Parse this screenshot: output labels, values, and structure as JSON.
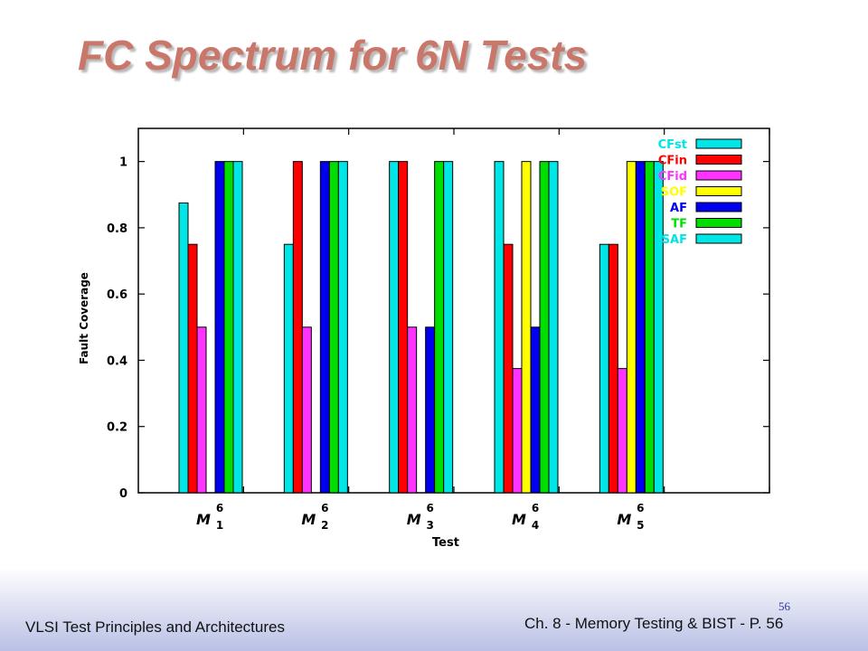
{
  "slide": {
    "title": "FC Spectrum for 6N Tests",
    "footer_left": "VLSI Test Principles and Architectures",
    "footer_right": "Ch. 8 - Memory Testing & BIST - P. 56",
    "page_number": "56"
  },
  "chart_data": {
    "type": "bar",
    "title": "",
    "xlabel": "Test",
    "ylabel": "Fault Coverage",
    "ylim": [
      0,
      1.1
    ],
    "yticks": [
      "0",
      "0.2",
      "0.4",
      "0.6",
      "0.8",
      "1"
    ],
    "grid": false,
    "legend_position": "top-right",
    "categories": [
      {
        "base": "M",
        "sup": "6",
        "sub": "1"
      },
      {
        "base": "M",
        "sup": "6",
        "sub": "2"
      },
      {
        "base": "M",
        "sup": "6",
        "sub": "3"
      },
      {
        "base": "M",
        "sup": "6",
        "sub": "4"
      },
      {
        "base": "M",
        "sup": "6",
        "sub": "5"
      },
      {
        "base": "",
        "sup": "",
        "sub": ""
      }
    ],
    "series": [
      {
        "name": "CFst",
        "color": "#00e5e5",
        "values": [
          0.875,
          0.75,
          1.0,
          1.0,
          0.75,
          null
        ]
      },
      {
        "name": "CFin",
        "color": "#ff0000",
        "values": [
          0.75,
          1.0,
          1.0,
          0.75,
          0.75,
          null
        ]
      },
      {
        "name": "CFid",
        "color": "#ff33ff",
        "values": [
          0.5,
          0.5,
          0.5,
          0.375,
          0.375,
          null
        ]
      },
      {
        "name": "SOF",
        "color": "#ffff00",
        "values": [
          null,
          null,
          null,
          1.0,
          1.0,
          null
        ]
      },
      {
        "name": "AF",
        "color": "#0000ee",
        "values": [
          1.0,
          1.0,
          0.5,
          0.5,
          1.0,
          null
        ]
      },
      {
        "name": "TF",
        "color": "#00dd00",
        "values": [
          1.0,
          1.0,
          1.0,
          1.0,
          1.0,
          null
        ]
      },
      {
        "name": "SAF",
        "color": "#00e5e5",
        "values": [
          1.0,
          1.0,
          1.0,
          1.0,
          1.0,
          null
        ]
      }
    ]
  }
}
